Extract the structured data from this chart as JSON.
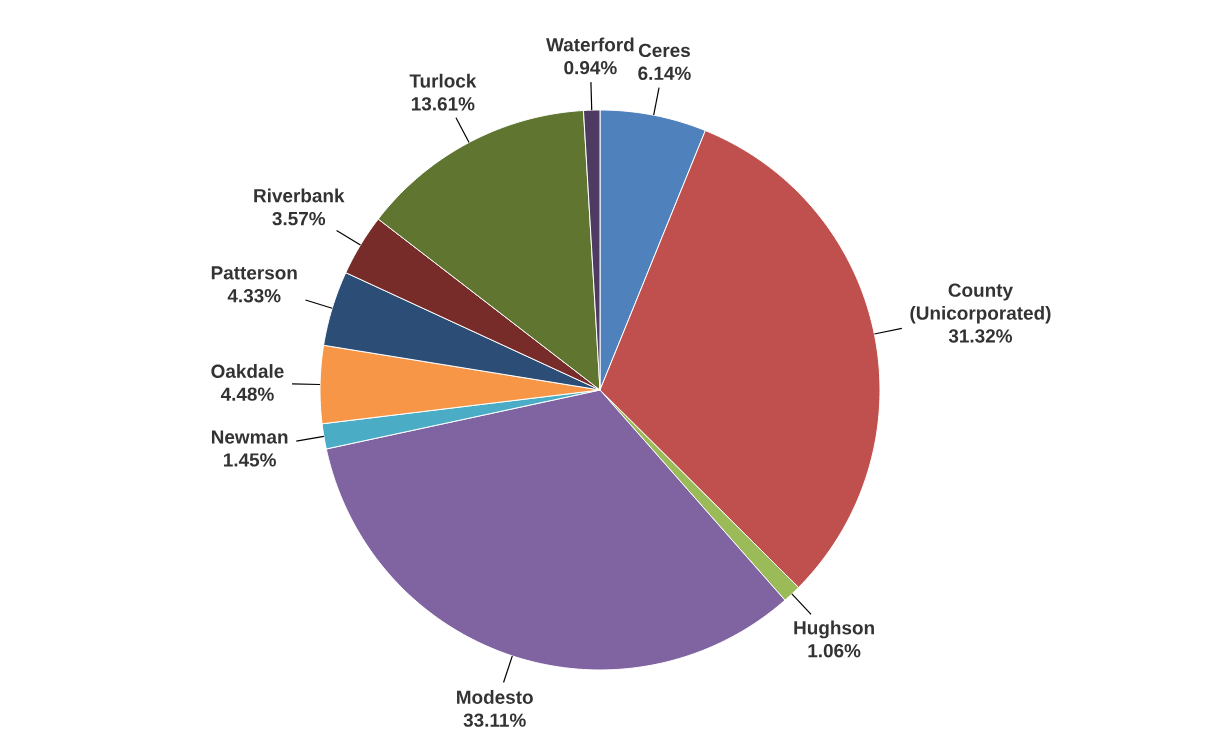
{
  "chart_data": {
    "type": "pie",
    "categories": [
      "Ceres",
      "County (Unicorporated)",
      "Hughson",
      "Modesto",
      "Newman",
      "Oakdale",
      "Patterson",
      "Riverbank",
      "Turlock",
      "Waterford"
    ],
    "values": [
      6.14,
      31.32,
      1.06,
      33.11,
      1.45,
      4.48,
      4.33,
      3.57,
      13.61,
      0.94
    ],
    "value_labels": [
      "6.14%",
      "31.32%",
      "1.06%",
      "33.11%",
      "1.45%",
      "4.48%",
      "4.33%",
      "3.57%",
      "13.61%",
      "0.94%"
    ],
    "colors": [
      "#4f81bd",
      "#c0504d",
      "#9bbb59",
      "#8064a2",
      "#4bacc6",
      "#f79646",
      "#2c4d75",
      "#772c2a",
      "#5f7530",
      "#4d3b62"
    ]
  }
}
